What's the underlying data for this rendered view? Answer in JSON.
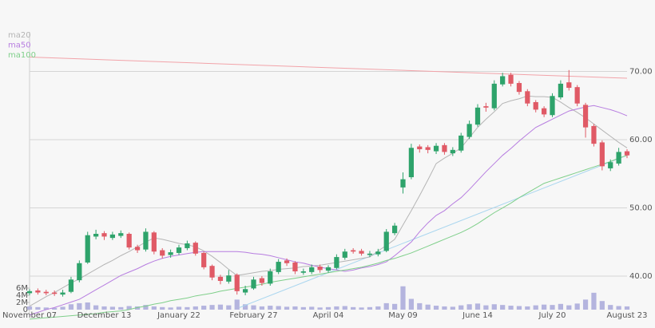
{
  "chart_data": {
    "type": "candlestick",
    "categories": [
      "November 07",
      null,
      null,
      null,
      null,
      null,
      null,
      null,
      null,
      "December 13",
      null,
      null,
      null,
      null,
      null,
      null,
      null,
      null,
      "January 22",
      null,
      null,
      null,
      null,
      null,
      null,
      null,
      null,
      "February 27",
      null,
      null,
      null,
      null,
      null,
      null,
      null,
      null,
      "April 04",
      null,
      null,
      null,
      null,
      null,
      null,
      null,
      null,
      "May 09",
      null,
      null,
      null,
      null,
      null,
      null,
      null,
      null,
      "June 14",
      null,
      null,
      null,
      null,
      null,
      null,
      null,
      null,
      "July 20",
      null,
      null,
      null,
      null,
      null,
      null,
      null,
      null,
      "August 23"
    ],
    "open": [
      37.5,
      37.9,
      37.7,
      37.6,
      37.3,
      37.7,
      39.4,
      42,
      45.8,
      46.3,
      45.6,
      45.9,
      46.2,
      44.3,
      43.9,
      46.4,
      43.8,
      43.1,
      43.4,
      44.1,
      44.9,
      43.4,
      41.5,
      39.9,
      39.2,
      40.2,
      37.6,
      38.2,
      39.7,
      38.9,
      40.6,
      42.3,
      42,
      40.5,
      40.6,
      41.4,
      40.8,
      41.2,
      42.7,
      43.8,
      43.7,
      43.1,
      43.2,
      43.7,
      46.3,
      53,
      54.5,
      59,
      58.9,
      58.3,
      59.2,
      58,
      58.4,
      60.4,
      62.2,
      64.9,
      64.6,
      68.1,
      69.5,
      68.3,
      67.1,
      65.5,
      64.6,
      63.6,
      66.2,
      68.4,
      67.7,
      65.1,
      62,
      59.6,
      55.8,
      56.5,
      58.3
    ],
    "high": [
      38.1,
      38.2,
      38,
      37.9,
      38,
      39.9,
      42.3,
      46.5,
      46.8,
      46.6,
      46.5,
      46.7,
      46.4,
      44.6,
      47,
      46.6,
      44.1,
      43.9,
      44.6,
      45.2,
      45.1,
      43.6,
      41.7,
      40.2,
      40.9,
      40.4,
      38.6,
      39.9,
      40,
      41.1,
      42.5,
      42.6,
      42.2,
      41.1,
      41.7,
      41.7,
      41.6,
      43.2,
      44,
      44.1,
      44,
      43.7,
      44,
      46.9,
      47.8,
      55.2,
      59.4,
      59.3,
      59.2,
      59.5,
      59.5,
      58.9,
      61,
      62.8,
      65.2,
      65.4,
      68.7,
      69.8,
      69.8,
      68.6,
      67.4,
      65.8,
      64.9,
      66.8,
      68.7,
      70.2,
      68,
      65.4,
      62.3,
      59.9,
      57.1,
      58.8,
      58.6
    ],
    "low": [
      37.2,
      37.3,
      37.2,
      37.1,
      37,
      37.5,
      39.1,
      41.8,
      45.4,
      45.3,
      45.3,
      45.6,
      43.9,
      43.4,
      43.6,
      43.2,
      42.6,
      42.7,
      43.1,
      43.8,
      43,
      41,
      39.4,
      38.8,
      38.9,
      37.3,
      37.2,
      38,
      38.6,
      38.6,
      40.3,
      41.5,
      40.3,
      40.2,
      40.3,
      40.5,
      40.5,
      41,
      42.4,
      43.3,
      43,
      42.8,
      42.9,
      43.5,
      46,
      52.1,
      54.2,
      58.1,
      58,
      57.9,
      57.8,
      57.6,
      58.1,
      60.1,
      61.9,
      64.1,
      64.3,
      67.8,
      67.8,
      66.6,
      64.9,
      64,
      63.3,
      63.3,
      65.9,
      67.2,
      64.9,
      60.3,
      59,
      55.5,
      55.4,
      56.2,
      57.3
    ],
    "close": [
      37.8,
      37.6,
      37.5,
      37.4,
      37.6,
      39.5,
      41.9,
      46,
      46.2,
      45.8,
      46.1,
      46.3,
      44.2,
      43.8,
      46.5,
      43.6,
      43,
      43.5,
      44.2,
      44.8,
      43.3,
      41.3,
      39.8,
      39.3,
      40.1,
      37.8,
      38.1,
      39.5,
      39,
      40.7,
      42.1,
      41.9,
      40.7,
      40.7,
      41.3,
      40.9,
      41.3,
      42.8,
      43.6,
      43.6,
      43.3,
      43.3,
      43.6,
      46.5,
      47.4,
      54.2,
      58.8,
      58.6,
      58.5,
      59.1,
      58.2,
      58.5,
      60.6,
      62.3,
      64.7,
      64.7,
      68.2,
      69.3,
      68.2,
      67,
      65.3,
      64.4,
      63.7,
      66.4,
      68.2,
      67.6,
      65.3,
      61.8,
      59.4,
      56.1,
      56.7,
      58.2,
      57.7
    ],
    "up_color": "#2ea36b",
    "down_color": "#e05a66",
    "series": [
      {
        "name": "ma20",
        "color": "#b5b5b5",
        "values": [
          35.6,
          36.3,
          37,
          37.6,
          38.3,
          39,
          39.6,
          40.3,
          41,
          41.7,
          42.3,
          43,
          43.6,
          44.3,
          45,
          45.6,
          45.4,
          45.1,
          44.8,
          44.6,
          44.3,
          43.7,
          42.9,
          42,
          41,
          40.1,
          40.3,
          40.5,
          40.7,
          40.8,
          41,
          41.1,
          41.2,
          41.4,
          41.5,
          41.6,
          41.8,
          42,
          42.2,
          42.4,
          42.6,
          42.8,
          43.7,
          44.5,
          45.4,
          47.5,
          49.6,
          51.8,
          54.1,
          56.5,
          57.3,
          58,
          58.8,
          60.3,
          61.8,
          63,
          64.1,
          65.3,
          65.7,
          66,
          66.4,
          66.3,
          66.3,
          66.2,
          65.5,
          64.7,
          64,
          63.2,
          62.3,
          61.4,
          60.5,
          59.6,
          58.8
        ]
      },
      {
        "name": "ma50",
        "color": "#b77de0",
        "values": [
          34.3,
          34.7,
          35.1,
          35.4,
          35.8,
          36.2,
          36.6,
          37.3,
          38,
          38.7,
          39.4,
          40.1,
          40.6,
          41.1,
          41.7,
          42.2,
          42.6,
          42.9,
          43.1,
          43.3,
          43.5,
          43.6,
          43.6,
          43.6,
          43.6,
          43.6,
          43.5,
          43.3,
          43.2,
          43,
          42.7,
          42.4,
          42.1,
          41.9,
          41.6,
          41.3,
          41.1,
          40.9,
          40.7,
          40.9,
          41.2,
          41.4,
          41.7,
          42.1,
          43,
          44,
          45,
          46.5,
          47.8,
          48.9,
          49.6,
          50.6,
          51.5,
          52.7,
          54,
          55.3,
          56.5,
          57.7,
          58.7,
          59.8,
          60.8,
          61.8,
          62.4,
          63,
          63.6,
          64.2,
          64.5,
          64.8,
          65,
          64.7,
          64.4,
          64,
          63.5
        ]
      },
      {
        "name": "ma100",
        "color": "#7fcf8a",
        "values": [
          33.7,
          33.8,
          33.9,
          34,
          34.1,
          34.2,
          34.3,
          34.4,
          34.5,
          34.7,
          34.8,
          34.9,
          35.1,
          35.4,
          35.6,
          35.9,
          36.1,
          36.4,
          36.6,
          36.8,
          37.1,
          37.3,
          37.5,
          37.8,
          38,
          38.2,
          38.4,
          38.6,
          38.8,
          39.1,
          39.3,
          39.5,
          39.7,
          39.9,
          40.1,
          40.3,
          40.5,
          40.7,
          40.9,
          41.1,
          41.3,
          41.6,
          41.9,
          42.3,
          42.6,
          43,
          43.4,
          43.9,
          44.4,
          44.9,
          45.4,
          45.9,
          46.4,
          47,
          47.7,
          48.5,
          49.3,
          50,
          50.7,
          51.5,
          52.2,
          52.9,
          53.6,
          54,
          54.4,
          54.8,
          55.2,
          55.6,
          56,
          56.4,
          56.8,
          57.3,
          57.7
        ]
      }
    ],
    "trendlines": [
      {
        "color": "#f2a3a9",
        "x": [
          0,
          72
        ],
        "values": [
          72.1,
          69
        ]
      },
      {
        "color": "#a9d6ef",
        "x": [
          25.3,
          72
        ],
        "values": [
          35.4,
          57.7
        ]
      }
    ],
    "ylim": [
      33.5,
      76
    ],
    "yticks": [
      {
        "value": 40,
        "label": "40.00"
      },
      {
        "value": 50,
        "label": "50.00"
      },
      {
        "value": 60,
        "label": "60.00"
      },
      {
        "value": 70,
        "label": "70.00"
      }
    ],
    "grid": true,
    "volume": {
      "color": "#b4b4de",
      "values": [
        900000,
        700000,
        600000,
        500000,
        800000,
        1500000,
        1800000,
        2000000,
        1200000,
        900000,
        800000,
        700000,
        1000000,
        900000,
        1300000,
        900000,
        700000,
        600000,
        800000,
        700000,
        900000,
        1100000,
        1300000,
        1400000,
        1200000,
        2800000,
        1500000,
        1200000,
        900000,
        1100000,
        1000000,
        800000,
        900000,
        700000,
        800000,
        600000,
        700000,
        900000,
        1000000,
        700000,
        600000,
        700000,
        900000,
        1800000,
        1600000,
        6500000,
        3000000,
        1800000,
        1400000,
        1100000,
        900000,
        800000,
        1200000,
        1500000,
        1700000,
        1200000,
        1500000,
        1300000,
        1100000,
        1000000,
        900000,
        1200000,
        1400000,
        1300000,
        1600000,
        1200000,
        1700000,
        2800000,
        4700000,
        2400000,
        1300000,
        1000000,
        900000
      ],
      "ylim": [
        0,
        6000000
      ],
      "yticks": [
        0,
        {
          "value": 2000000,
          "label": "2M"
        },
        {
          "value": 4000000,
          "label": "4M"
        },
        {
          "value": 6000000,
          "label": "6M"
        }
      ]
    }
  }
}
